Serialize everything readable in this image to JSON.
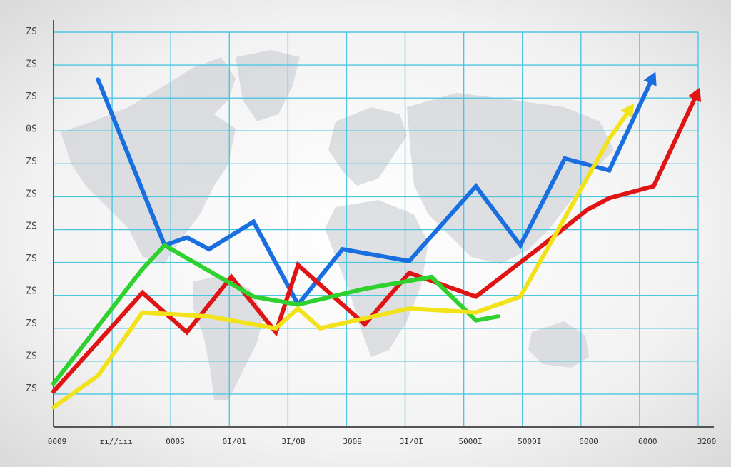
{
  "chart_data": {
    "type": "line",
    "title": "",
    "xlabel": "",
    "ylabel": "",
    "grid": true,
    "background": "world-map",
    "x_tick_labels": [
      "0009",
      "ɪı//ııı",
      "000S",
      "0I/01",
      "3I/0B",
      "300B",
      "3I/0I",
      "5000I",
      "5000I",
      "6000",
      "6000",
      "3200"
    ],
    "y_tick_labels": [
      "ZS",
      "ZS",
      "ZS",
      "0S",
      "ZS",
      "ZS",
      "ZS",
      "ZS",
      "ZS",
      "ZS",
      "ZS",
      "ZS"
    ],
    "x": [
      0,
      1,
      2,
      3,
      4,
      5,
      6,
      7,
      8,
      9,
      10,
      11,
      12,
      13,
      14,
      15,
      16,
      17,
      18,
      19,
      20,
      21,
      22,
      23,
      24,
      25,
      26,
      27,
      28,
      29
    ],
    "ylim": [
      0,
      100
    ],
    "xlim": [
      0,
      29
    ],
    "series": [
      {
        "color": "#1a6fe0",
        "arrow": true,
        "points": [
          [
            2,
            88
          ],
          [
            5,
            46
          ],
          [
            6,
            48
          ],
          [
            7,
            45
          ],
          [
            9,
            52
          ],
          [
            11,
            31
          ],
          [
            13,
            45
          ],
          [
            16,
            42
          ],
          [
            19,
            61
          ],
          [
            21,
            46
          ],
          [
            23,
            68
          ],
          [
            25,
            65
          ],
          [
            27,
            89
          ]
        ]
      },
      {
        "color": "#e01414",
        "arrow": true,
        "points": [
          [
            0,
            9
          ],
          [
            4,
            34
          ],
          [
            6,
            24
          ],
          [
            8,
            38
          ],
          [
            10,
            24
          ],
          [
            11,
            41
          ],
          [
            14,
            26
          ],
          [
            16,
            39
          ],
          [
            19,
            33
          ],
          [
            22,
            46
          ],
          [
            24,
            55
          ],
          [
            25,
            58
          ],
          [
            27,
            61
          ],
          [
            29,
            85
          ]
        ]
      },
      {
        "color": "#2ed12e",
        "arrow": false,
        "points": [
          [
            0,
            11
          ],
          [
            4,
            40
          ],
          [
            5,
            46
          ],
          [
            9,
            33
          ],
          [
            11,
            31
          ],
          [
            14,
            35
          ],
          [
            17,
            38
          ],
          [
            19,
            27
          ],
          [
            20,
            28
          ]
        ]
      },
      {
        "color": "#f2e21a",
        "arrow": true,
        "points": [
          [
            0,
            5
          ],
          [
            2,
            13
          ],
          [
            4,
            29
          ],
          [
            7,
            28
          ],
          [
            10,
            25
          ],
          [
            11,
            30
          ],
          [
            12,
            25
          ],
          [
            16,
            30
          ],
          [
            19,
            29
          ],
          [
            21,
            33
          ],
          [
            23,
            53
          ],
          [
            25,
            73
          ],
          [
            26,
            81
          ]
        ]
      }
    ]
  },
  "colors": {
    "grid": "#4dc6e0",
    "axis": "#555555",
    "map": "#c4c9cf"
  }
}
